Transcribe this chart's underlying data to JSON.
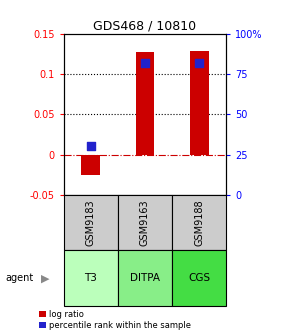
{
  "title": "GDS468 / 10810",
  "samples": [
    "GSM9183",
    "GSM9163",
    "GSM9188"
  ],
  "agents": [
    "T3",
    "DITPA",
    "CGS"
  ],
  "log_ratios": [
    -0.025,
    0.127,
    0.128
  ],
  "percentile_ranks": [
    0.3,
    0.82,
    0.82
  ],
  "ylim_left": [
    -0.05,
    0.15
  ],
  "yticks_left": [
    -0.05,
    0.0,
    0.05,
    0.1,
    0.15
  ],
  "ytick_labels_left": [
    "-0.05",
    "0",
    "0.05",
    "0.1",
    "0.15"
  ],
  "yticks_right": [
    0.0,
    0.25,
    0.5,
    0.75,
    1.0
  ],
  "ytick_labels_right": [
    "0",
    "25",
    "50",
    "75",
    "100%"
  ],
  "grid_yticks": [
    0.05,
    0.1
  ],
  "bar_color": "#cc0000",
  "dot_color": "#2222cc",
  "agent_colors": [
    "#bbffbb",
    "#88ee88",
    "#44dd44"
  ],
  "sample_bg_color": "#cccccc",
  "bar_width": 0.35,
  "dot_size": 30,
  "title_fontsize": 9,
  "tick_fontsize": 7,
  "label_fontsize": 7
}
